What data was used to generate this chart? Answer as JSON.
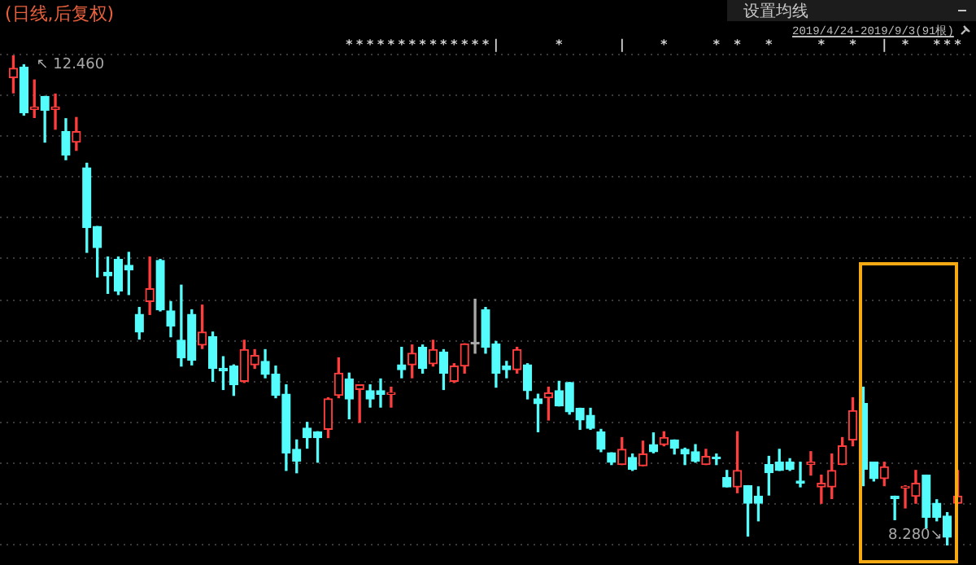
{
  "chart_data": {
    "type": "candlestick",
    "title": "(日线,后复权)",
    "subtitle": "2019/4/24-2019/9/3(91根)",
    "annotations": [
      "设置均线",
      "                                **************|     *     |   *    * *  *    *  *  | *  ***",
      "↖ 12.460",
      "8.280↘"
    ],
    "categories": [
      null,
      null,
      null,
      null,
      null,
      null,
      null,
      null,
      null,
      null,
      null,
      null,
      null,
      null,
      null,
      null,
      null,
      null,
      null,
      null,
      null,
      null,
      null,
      null,
      null,
      null,
      null,
      null,
      null,
      null,
      null,
      null,
      null,
      null,
      null,
      null,
      null,
      null,
      null,
      null,
      null,
      null,
      null,
      null,
      null,
      null,
      null,
      null,
      null,
      null,
      null,
      null,
      null,
      null,
      null,
      null,
      null,
      null,
      null,
      null,
      null,
      null,
      null,
      null,
      null,
      null,
      null,
      null,
      null,
      null,
      null,
      null,
      null,
      null,
      null,
      null,
      null,
      null,
      null,
      null,
      null,
      null,
      null,
      null,
      null,
      null,
      null,
      null,
      null,
      null,
      null
    ],
    "ohlc": [
      [
        12.27,
        12.46,
        12.14,
        12.35
      ],
      [
        12.36,
        12.38,
        11.95,
        11.97
      ],
      [
        12.0,
        12.25,
        11.93,
        12.02
      ],
      [
        12.11,
        12.11,
        11.72,
        11.99
      ],
      [
        12.0,
        12.13,
        11.83,
        12.02
      ],
      [
        11.81,
        11.92,
        11.57,
        11.61
      ],
      [
        11.72,
        11.93,
        11.65,
        11.81
      ],
      [
        11.5,
        11.54,
        10.78,
        10.99
      ],
      [
        11.0,
        11.0,
        10.57,
        10.82
      ],
      [
        10.61,
        10.74,
        10.43,
        10.58
      ],
      [
        10.72,
        10.74,
        10.42,
        10.45
      ],
      [
        10.67,
        10.78,
        10.42,
        10.63
      ],
      [
        10.25,
        10.31,
        10.04,
        10.1
      ],
      [
        10.36,
        10.74,
        10.25,
        10.47
      ],
      [
        10.71,
        10.72,
        10.28,
        10.29
      ],
      [
        10.28,
        10.36,
        10.06,
        10.15
      ],
      [
        10.03,
        10.5,
        9.81,
        9.88
      ],
      [
        10.25,
        10.29,
        9.82,
        9.86
      ],
      [
        9.99,
        10.33,
        9.96,
        10.1
      ],
      [
        10.06,
        10.1,
        9.68,
        9.79
      ],
      [
        9.79,
        9.89,
        9.61,
        9.77
      ],
      [
        9.81,
        9.82,
        9.56,
        9.65
      ],
      [
        9.68,
        10.03,
        9.67,
        9.95
      ],
      [
        9.82,
        9.95,
        9.79,
        9.9
      ],
      [
        9.85,
        9.95,
        9.71,
        9.74
      ],
      [
        9.74,
        9.81,
        9.54,
        9.56
      ],
      [
        9.57,
        9.65,
        8.92,
        9.07
      ],
      [
        9.1,
        9.18,
        8.9,
        9.0
      ],
      [
        9.28,
        9.33,
        9.11,
        9.2
      ],
      [
        9.25,
        9.25,
        8.99,
        9.2
      ],
      [
        9.27,
        9.54,
        9.2,
        9.53
      ],
      [
        9.56,
        9.88,
        9.54,
        9.75
      ],
      [
        9.7,
        9.75,
        9.36,
        9.53
      ],
      [
        9.61,
        9.65,
        9.33,
        9.65
      ],
      [
        9.6,
        9.65,
        9.46,
        9.53
      ],
      [
        9.6,
        9.7,
        9.46,
        9.57
      ],
      [
        9.57,
        9.63,
        9.46,
        9.58
      ],
      [
        9.82,
        9.97,
        9.71,
        9.78
      ],
      [
        9.82,
        9.99,
        9.71,
        9.92
      ],
      [
        9.97,
        9.99,
        9.75,
        9.79
      ],
      [
        9.83,
        10.03,
        9.81,
        9.95
      ],
      [
        9.93,
        9.95,
        9.61,
        9.75
      ],
      [
        9.68,
        9.83,
        9.67,
        9.81
      ],
      [
        9.81,
        10.0,
        9.75,
        10.0
      ],
      [
        10.0,
        10.38,
        9.92,
        10.0
      ],
      [
        10.29,
        10.31,
        9.92,
        9.97
      ],
      [
        10.0,
        10.02,
        9.63,
        9.75
      ],
      [
        9.81,
        9.85,
        9.71,
        9.78
      ],
      [
        9.78,
        9.97,
        9.75,
        9.95
      ],
      [
        9.82,
        9.83,
        9.53,
        9.6
      ],
      [
        9.53,
        9.57,
        9.25,
        9.49
      ],
      [
        9.54,
        9.63,
        9.35,
        9.58
      ],
      [
        9.6,
        9.68,
        9.47,
        9.47
      ],
      [
        9.67,
        9.67,
        9.4,
        9.42
      ],
      [
        9.45,
        9.45,
        9.27,
        9.35
      ],
      [
        9.39,
        9.45,
        9.27,
        9.28
      ],
      [
        9.25,
        9.27,
        9.08,
        9.1
      ],
      [
        9.07,
        9.07,
        8.97,
        8.99
      ],
      [
        8.97,
        9.2,
        8.97,
        9.1
      ],
      [
        9.03,
        9.06,
        8.92,
        8.93
      ],
      [
        8.96,
        9.17,
        8.96,
        9.06
      ],
      [
        9.14,
        9.24,
        9.07,
        9.08
      ],
      [
        9.14,
        9.25,
        9.13,
        9.2
      ],
      [
        9.18,
        9.18,
        9.06,
        9.11
      ],
      [
        9.1,
        9.11,
        8.97,
        9.06
      ],
      [
        9.08,
        9.14,
        8.99,
        9.0
      ],
      [
        8.97,
        9.1,
        8.97,
        9.04
      ],
      [
        9.03,
        9.06,
        8.97,
        9.02
      ],
      [
        8.86,
        8.92,
        8.78,
        8.78
      ],
      [
        8.78,
        9.25,
        8.73,
        8.92
      ],
      [
        8.79,
        8.79,
        8.36,
        8.64
      ],
      [
        8.7,
        8.78,
        8.49,
        8.64
      ],
      [
        8.97,
        9.04,
        8.71,
        8.9
      ],
      [
        8.99,
        9.1,
        8.92,
        8.92
      ],
      [
        8.99,
        9.02,
        8.92,
        8.93
      ],
      [
        8.83,
        8.99,
        8.78,
        8.81
      ],
      [
        8.97,
        9.08,
        8.88,
        8.99
      ],
      [
        8.78,
        8.88,
        8.64,
        8.81
      ],
      [
        8.78,
        9.06,
        8.68,
        8.92
      ],
      [
        8.97,
        9.2,
        8.97,
        9.13
      ],
      [
        9.18,
        9.54,
        9.13,
        9.43
      ],
      [
        9.49,
        9.63,
        8.79,
        8.93
      ],
      [
        8.99,
        8.99,
        8.83,
        8.85
      ],
      [
        8.85,
        8.99,
        8.79,
        8.95
      ],
      [
        8.7,
        8.7,
        8.5,
        8.68
      ],
      [
        8.77,
        8.79,
        8.6,
        8.78
      ],
      [
        8.7,
        8.92,
        8.64,
        8.81
      ],
      [
        8.88,
        8.88,
        8.43,
        8.52
      ],
      [
        8.64,
        8.67,
        8.49,
        8.52
      ],
      [
        8.53,
        8.56,
        8.28,
        8.35
      ],
      [
        8.64,
        8.92,
        8.64,
        8.7
      ]
    ],
    "colors": [
      "#ff3d3d",
      "#54fcfc",
      "#ff3d3d",
      "#54fcfc",
      "#ff3d3d",
      "#54fcfc",
      "#ff3d3d",
      "#54fcfc",
      "#54fcfc",
      "#54fcfc",
      "#54fcfc",
      "#54fcfc",
      "#54fcfc",
      "#ff3d3d",
      "#54fcfc",
      "#54fcfc",
      "#54fcfc",
      "#54fcfc",
      "#ff3d3d",
      "#54fcfc",
      "#54fcfc",
      "#54fcfc",
      "#ff3d3d",
      "#ff3d3d",
      "#54fcfc",
      "#54fcfc",
      "#54fcfc",
      "#54fcfc",
      "#54fcfc",
      "#54fcfc",
      "#ff3d3d",
      "#ff3d3d",
      "#54fcfc",
      "#ff3d3d",
      "#54fcfc",
      "#54fcfc",
      "#ff3d3d",
      "#54fcfc",
      "#ff3d3d",
      "#54fcfc",
      "#ff3d3d",
      "#54fcfc",
      "#ff3d3d",
      "#ff3d3d",
      "#a8a8a8",
      "#54fcfc",
      "#54fcfc",
      "#54fcfc",
      "#ff3d3d",
      "#54fcfc",
      "#54fcfc",
      "#ff3d3d",
      "#54fcfc",
      "#54fcfc",
      "#54fcfc",
      "#54fcfc",
      "#54fcfc",
      "#54fcfc",
      "#ff3d3d",
      "#54fcfc",
      "#ff3d3d",
      "#54fcfc",
      "#ff3d3d",
      "#54fcfc",
      "#54fcfc",
      "#54fcfc",
      "#ff3d3d",
      "#54fcfc",
      "#54fcfc",
      "#ff3d3d",
      "#54fcfc",
      "#54fcfc",
      "#54fcfc",
      "#54fcfc",
      "#54fcfc",
      "#54fcfc",
      "#ff3d3d",
      "#ff3d3d",
      "#ff3d3d",
      "#ff3d3d",
      "#ff3d3d",
      "#54fcfc",
      "#54fcfc",
      "#ff3d3d",
      "#54fcfc",
      "#ff3d3d",
      "#ff3d3d",
      "#54fcfc",
      "#54fcfc",
      "#54fcfc",
      "#ff3d3d"
    ],
    "grid": true,
    "legend": false,
    "tick_labels": false
  }
}
